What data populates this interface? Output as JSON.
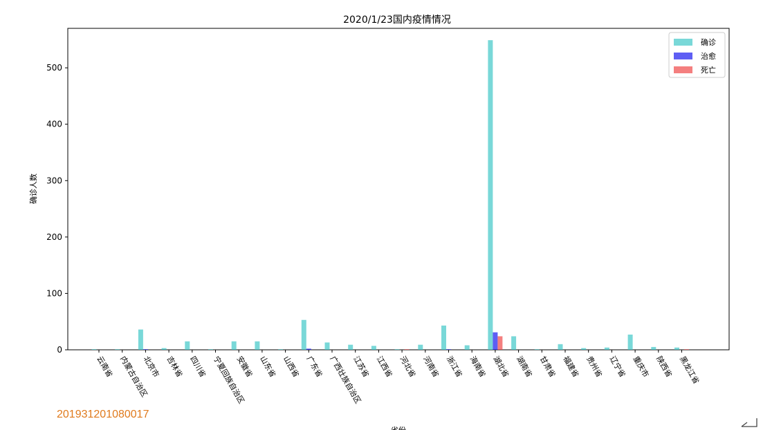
{
  "watermark_text": "201931201080017",
  "chart_data": {
    "type": "bar",
    "title": "2020/1/23国内疫情情况",
    "ylabel": "确诊人数",
    "xlabel": "省份",
    "ylim": [
      0,
      570
    ],
    "yticks": [
      0,
      100,
      200,
      300,
      400,
      500
    ],
    "categories": [
      "云南省",
      "内蒙古自治区",
      "北京市",
      "吉林省",
      "四川省",
      "宁夏回族自治区",
      "安徽省",
      "山东省",
      "山西省",
      "广东省",
      "广西壮族自治区",
      "江苏省",
      "江西省",
      "河北省",
      "河南省",
      "浙江省",
      "海南省",
      "湖北省",
      "湖南省",
      "甘肃省",
      "福建省",
      "贵州省",
      "辽宁省",
      "重庆市",
      "陕西省",
      "黑龙江省"
    ],
    "series": [
      {
        "name": "确诊",
        "color": "#40c8c8",
        "values": [
          1,
          1,
          36,
          3,
          15,
          1,
          15,
          15,
          1,
          53,
          13,
          9,
          7,
          1,
          9,
          43,
          8,
          549,
          24,
          1,
          10,
          3,
          4,
          27,
          5,
          4
        ]
      },
      {
        "name": "治愈",
        "color": "#1a1af0",
        "values": [
          0,
          0,
          1,
          0,
          0,
          0,
          0,
          0,
          0,
          2,
          0,
          0,
          0,
          0,
          0,
          1,
          0,
          31,
          0,
          0,
          0,
          0,
          0,
          0,
          0,
          0
        ]
      },
      {
        "name": "死亡",
        "color": "#f04848",
        "values": [
          0,
          0,
          0,
          0,
          0,
          0,
          0,
          0,
          0,
          0,
          0,
          0,
          0,
          1,
          0,
          0,
          0,
          24,
          0,
          0,
          0,
          0,
          0,
          0,
          0,
          1
        ]
      }
    ],
    "legend_position": "top-right",
    "grid": false
  }
}
